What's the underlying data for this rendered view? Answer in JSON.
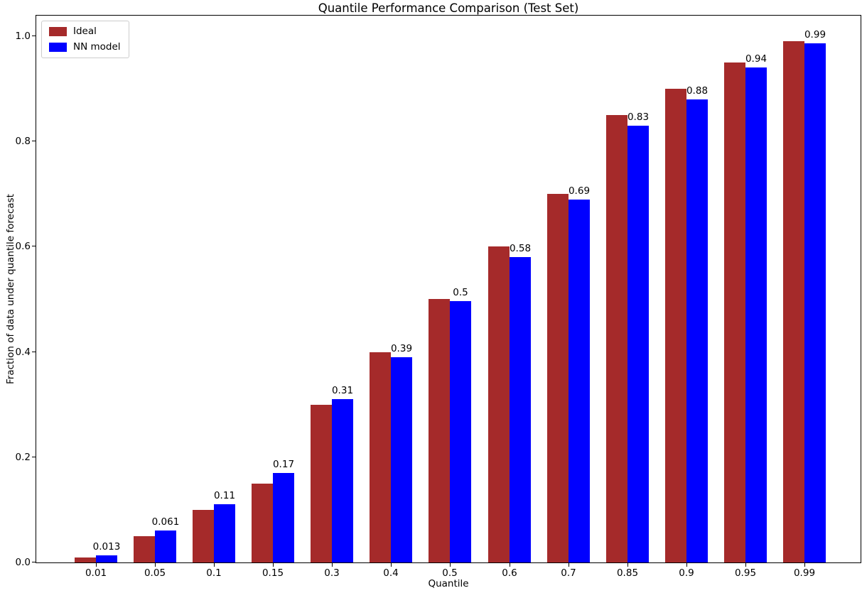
{
  "chart_data": {
    "type": "bar",
    "title": "Quantile Performance Comparison (Test Set)",
    "xlabel": "Quantile",
    "ylabel": "Fraction of data under quantile forecast",
    "categories": [
      "0.01",
      "0.05",
      "0.1",
      "0.15",
      "0.3",
      "0.4",
      "0.5",
      "0.6",
      "0.7",
      "0.85",
      "0.9",
      "0.95",
      "0.99"
    ],
    "series": [
      {
        "name": "Ideal",
        "color": "#a52a2a",
        "values": [
          0.01,
          0.05,
          0.1,
          0.15,
          0.3,
          0.4,
          0.5,
          0.6,
          0.7,
          0.85,
          0.9,
          0.95,
          0.99
        ]
      },
      {
        "name": "NN model",
        "color": "#0000ff",
        "values": [
          0.013,
          0.061,
          0.11,
          0.17,
          0.31,
          0.39,
          0.497,
          0.58,
          0.69,
          0.83,
          0.88,
          0.94,
          0.987
        ],
        "value_labels": [
          "0.013",
          "0.061",
          "0.11",
          "0.17",
          "0.31",
          "0.39",
          "0.5",
          "0.58",
          "0.69",
          "0.83",
          "0.88",
          "0.94",
          "0.99"
        ]
      }
    ],
    "ylim": [
      0,
      1.042
    ],
    "ytick_values": [
      0,
      0.2,
      0.4,
      0.6,
      0.8,
      1.0
    ],
    "ytick_labels": [
      "0.0",
      "0.2",
      "0.4",
      "0.6",
      "0.8",
      "1.0"
    ],
    "legend_position": "upper left",
    "grid": false,
    "background_color": "#ffffff",
    "text_color": "#000000",
    "value_labels_on": "NN model"
  }
}
